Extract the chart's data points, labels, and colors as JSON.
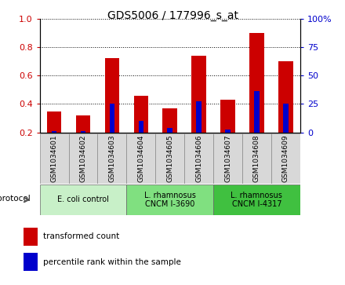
{
  "title": "GDS5006 / 177996_s_at",
  "samples": [
    "GSM1034601",
    "GSM1034602",
    "GSM1034603",
    "GSM1034604",
    "GSM1034605",
    "GSM1034606",
    "GSM1034607",
    "GSM1034608",
    "GSM1034609"
  ],
  "transformed_count": [
    0.35,
    0.32,
    0.72,
    0.46,
    0.37,
    0.74,
    0.43,
    0.9,
    0.7
  ],
  "percentile_rank": [
    0.21,
    0.21,
    0.4,
    0.28,
    0.23,
    0.42,
    0.22,
    0.49,
    0.4
  ],
  "bar_bottom": 0.2,
  "ylim": [
    0.2,
    1.0
  ],
  "right_ylim": [
    0,
    100
  ],
  "right_yticks": [
    0,
    25,
    50,
    75,
    100
  ],
  "right_yticklabels": [
    "0",
    "25",
    "50",
    "75",
    "100%"
  ],
  "left_yticks": [
    0.2,
    0.4,
    0.6,
    0.8,
    1.0
  ],
  "groups": [
    {
      "label": "E. coli control",
      "indices": [
        0,
        1,
        2
      ],
      "color": "#c8f0c8"
    },
    {
      "label": "L. rhamnosus\nCNCM I-3690",
      "indices": [
        3,
        4,
        5
      ],
      "color": "#80e080"
    },
    {
      "label": "L. rhamnosus\nCNCM I-4317",
      "indices": [
        6,
        7,
        8
      ],
      "color": "#40c040"
    }
  ],
  "sample_cell_color": "#d8d8d8",
  "protocol_label": "protocol",
  "red_color": "#CC0000",
  "blue_color": "#0000CC",
  "bar_width": 0.5,
  "grid_color": "#000000",
  "left_tick_color": "#CC0000",
  "right_tick_color": "#0000CC",
  "legend_red": "transformed count",
  "legend_blue": "percentile rank within the sample"
}
